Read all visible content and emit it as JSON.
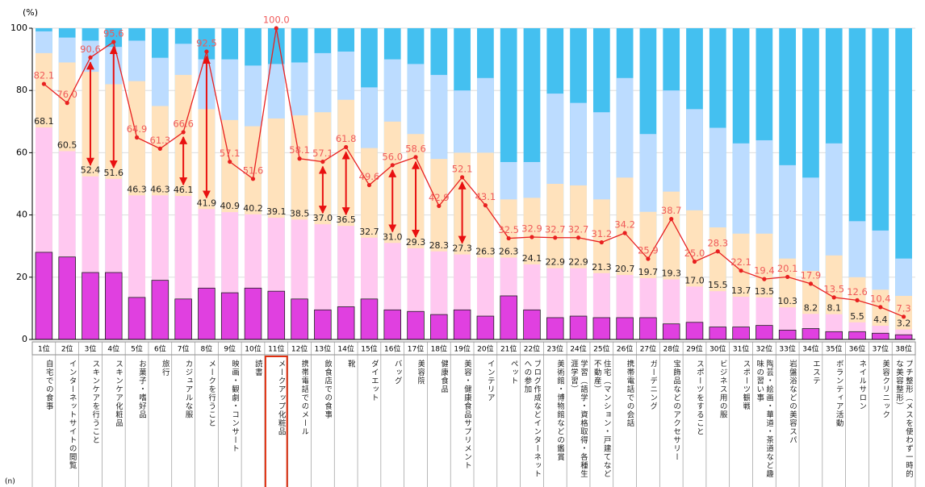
{
  "chart_data": {
    "type": "bar-line",
    "y_unit": "(%)",
    "n_label": "(n)",
    "ranks": [
      "1位",
      "2位",
      "3位",
      "4位",
      "5位",
      "6位",
      "7位",
      "8位",
      "9位",
      "10位",
      "11位",
      "12位",
      "13位",
      "14位",
      "15位",
      "16位",
      "17位",
      "18位",
      "19位",
      "20位",
      "21位",
      "22位",
      "23位",
      "24位",
      "25位",
      "26位",
      "27位",
      "28位",
      "29位",
      "30位",
      "31位",
      "32位",
      "33位",
      "34位",
      "35位",
      "36位",
      "37位",
      "38位"
    ],
    "categories": [
      "自宅での食事",
      "インターネットサイトの閲覧",
      "スキンケアを行うこと",
      "スキンケア化粧品",
      "お菓子・嗜好品",
      "旅行",
      "カジュアルな服",
      "メークを行うこと",
      "映画・観劇・コンサート",
      "読書",
      "メークアップ化粧品",
      "携帯電話でのメール",
      "飲食店での食事",
      "靴",
      "ダイエット",
      "バッグ",
      "美容院",
      "健康食品",
      "美容・健康食品サプリメント",
      "インテリア",
      "ペット",
      "ブログ作成などインターネットへの参加",
      "美術館・博物館などの鑑賞",
      "学習（語学・資格取得・各種生涯学習）",
      "住宅（マンション・戸建てなど不動産）",
      "携帯電話での会話",
      "ガーデニング",
      "宝飾品などのアクセサリー",
      "スポーツをすること",
      "ビジネス用の服",
      "スポーツ観戦",
      "陶芸・絵画・華道・茶道など趣味の習い事",
      "岩盤浴などの美容スパ",
      "エステ",
      "ボランティア活動",
      "ネイルサロン",
      "美容クリニック",
      "プチ整形（メスを使わず一時的な美容整形）"
    ],
    "highlight": 10,
    "ylim": [
      0,
      100
    ],
    "yticks": [
      0,
      20,
      40,
      60,
      80,
      100
    ],
    "grid": true,
    "bar_series": [
      {
        "color": "#e040e0",
        "values": [
          28,
          26.5,
          21.5,
          21.5,
          13.5,
          19,
          13,
          16.5,
          15,
          16.5,
          15.5,
          13,
          9.5,
          10.5,
          13,
          9.5,
          9,
          8,
          9.5,
          7.5,
          14,
          9.5,
          7,
          7.5,
          7,
          7,
          7,
          5,
          5.5,
          4,
          4,
          4.5,
          3,
          3.5,
          2.5,
          2.5,
          2,
          1.5
        ]
      },
      {
        "color": "#ffc8f0",
        "values": [
          68.1,
          60.5,
          52.4,
          51.6,
          46.3,
          46.3,
          46.1,
          41.9,
          40.9,
          40.2,
          39.1,
          38.5,
          37.0,
          36.5,
          32.7,
          31.0,
          29.3,
          28.3,
          27.3,
          26.3,
          26.3,
          24.1,
          22.9,
          22.9,
          21.3,
          20.7,
          19.7,
          19.3,
          17.0,
          15.5,
          13.7,
          13.5,
          10.3,
          8.2,
          8.1,
          5.5,
          4.4,
          3.2
        ],
        "value_labels": [
          "68.1",
          "60.5",
          "52.4",
          "51.6",
          "46.3",
          "46.3",
          "46.1",
          "41.9",
          "40.9",
          "40.2",
          "39.1",
          "38.5",
          "37.0",
          "36.5",
          "32.7",
          "31.0",
          "29.3",
          "28.3",
          "27.3",
          "26.3",
          "26.3",
          "24.1",
          "22.9",
          "22.9",
          "21.3",
          "20.7",
          "19.7",
          "19.3",
          "17.0",
          "15.5",
          "13.7",
          "13.5",
          "10.3",
          "8.2",
          "8.1",
          "5.5",
          "4.4",
          "3.2"
        ]
      },
      {
        "color": "#ffe2bc",
        "values": [
          92,
          89,
          86,
          82,
          83,
          75,
          85,
          74,
          70.5,
          68.5,
          71,
          72,
          73,
          77,
          61.5,
          70,
          66,
          58,
          60,
          60,
          45,
          45.5,
          50,
          49.5,
          45,
          52,
          41,
          47.5,
          41.5,
          36,
          34,
          34,
          26,
          22,
          27,
          20,
          16,
          14
        ]
      },
      {
        "color": "#bcdcff",
        "values": [
          99,
          97,
          96,
          94,
          96,
          90.5,
          95,
          90,
          90,
          88,
          88.5,
          89,
          92,
          92.5,
          81,
          90,
          88.5,
          85,
          80,
          84,
          57,
          57,
          79,
          76,
          73,
          84,
          66,
          80,
          74,
          68,
          63,
          64,
          56,
          52,
          63,
          38,
          35,
          26
        ]
      },
      {
        "color": "#44c0f0",
        "values": [
          100,
          100,
          100,
          100,
          100,
          100,
          100,
          100,
          100,
          100,
          100,
          100,
          100,
          100,
          100,
          100,
          100,
          100,
          100,
          100,
          100,
          100,
          100,
          100,
          100,
          100,
          100,
          100,
          100,
          100,
          100,
          100,
          100,
          100,
          100,
          100,
          100,
          100
        ]
      }
    ],
    "line": {
      "color": "#e82020",
      "values": [
        82.1,
        76.0,
        90.6,
        95.6,
        64.9,
        61.3,
        66.6,
        92.5,
        57.1,
        51.6,
        100.0,
        58.1,
        57.1,
        61.8,
        49.6,
        56.0,
        58.6,
        42.9,
        52.1,
        43.1,
        32.5,
        32.9,
        32.7,
        32.7,
        31.2,
        34.2,
        25.9,
        38.7,
        25.0,
        28.3,
        22.1,
        19.4,
        20.1,
        17.9,
        13.5,
        12.6,
        10.4,
        7.3
      ],
      "value_labels": [
        "82.1",
        "76.0",
        "90.6",
        "95.6",
        "64.9",
        "61.3",
        "66.6",
        "92.5",
        "57.1",
        "51.6",
        "100.0",
        "58.1",
        "57.1",
        "61.8",
        "49.6",
        "56.0",
        "58.6",
        "42.9",
        "52.1",
        "43.1",
        "32.5",
        "32.9",
        "32.7",
        "32.7",
        "31.2",
        "34.2",
        "25.9",
        "38.7",
        "25.0",
        "28.3",
        "22.1",
        "19.4",
        "20.1",
        "17.9",
        "13.5",
        "12.6",
        "10.4",
        "7.3"
      ]
    }
  }
}
